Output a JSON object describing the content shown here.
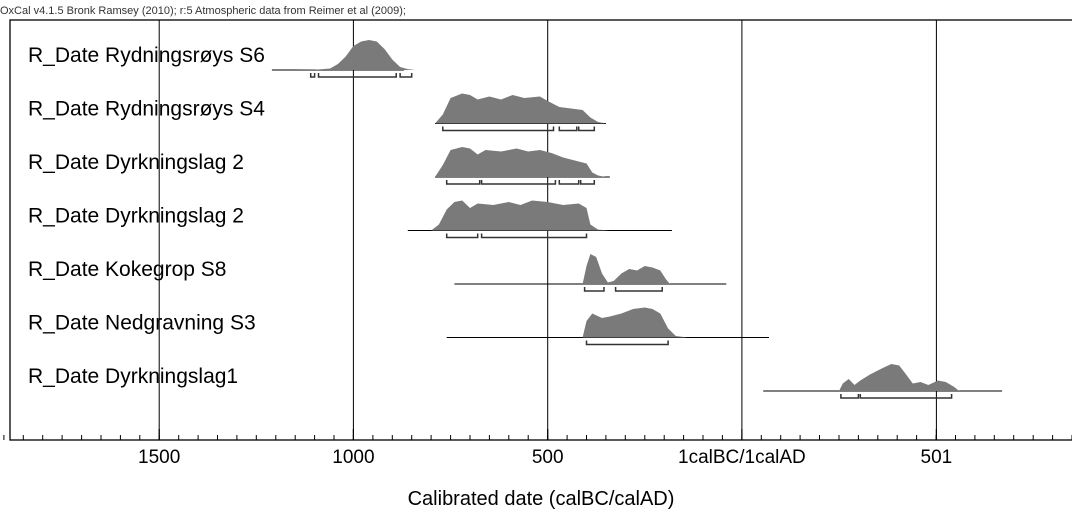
{
  "chart_data": {
    "type": "area",
    "header": "OxCal v4.1.5 Bronk Ramsey (2010); r:5 Atmospheric data from Reimer et al (2009);",
    "xlabel": "Calibrated date (calBC/calAD)",
    "x_axis": {
      "direction": "left-to-right older-to-younger",
      "range": [
        -1910,
        850
      ],
      "major_ticks": [
        {
          "value": -1500,
          "label": "1500"
        },
        {
          "value": -1000,
          "label": "1000"
        },
        {
          "value": -500,
          "label": "500"
        },
        {
          "value": 0,
          "label": "1calBC/1calAD"
        },
        {
          "value": 501,
          "label": "501"
        }
      ],
      "minor_tick_step": 50
    },
    "grid": true,
    "colors": {
      "distribution": "#7a7a7a",
      "line": "#000000",
      "range": "#333333",
      "frame": "#000000"
    },
    "series": [
      {
        "name": "R_Date Rydningsrøys S6",
        "baseline_span": [
          -1210,
          -870
        ],
        "distribution": [
          [
            -1160,
            0
          ],
          [
            -1100,
            0.01
          ],
          [
            -1060,
            0.05
          ],
          [
            -1040,
            0.2
          ],
          [
            -1020,
            0.45
          ],
          [
            -1000,
            0.8
          ],
          [
            -980,
            0.95
          ],
          [
            -960,
            1.0
          ],
          [
            -940,
            0.95
          ],
          [
            -920,
            0.7
          ],
          [
            -900,
            0.35
          ],
          [
            -880,
            0.1
          ],
          [
            -860,
            0.03
          ],
          [
            -840,
            0
          ]
        ],
        "ranges": [
          [
            -1110,
            -1100
          ],
          [
            -1090,
            -890
          ],
          [
            -880,
            -850
          ]
        ]
      },
      {
        "name": "R_Date Rydningsrøys S4",
        "baseline_span": [
          -790,
          -350
        ],
        "distribution": [
          [
            -790,
            0
          ],
          [
            -770,
            0.3
          ],
          [
            -750,
            0.85
          ],
          [
            -720,
            1.0
          ],
          [
            -700,
            0.95
          ],
          [
            -680,
            0.8
          ],
          [
            -650,
            0.9
          ],
          [
            -620,
            0.8
          ],
          [
            -590,
            0.95
          ],
          [
            -560,
            0.85
          ],
          [
            -520,
            0.9
          ],
          [
            -500,
            0.75
          ],
          [
            -470,
            0.55
          ],
          [
            -440,
            0.5
          ],
          [
            -410,
            0.45
          ],
          [
            -390,
            0.2
          ],
          [
            -370,
            0.05
          ],
          [
            -350,
            0
          ]
        ],
        "ranges": [
          [
            -770,
            -485
          ],
          [
            -470,
            -425
          ],
          [
            -420,
            -380
          ]
        ]
      },
      {
        "name": "R_Date Dyrkningslag 2",
        "baseline_span": [
          -790,
          -340
        ],
        "distribution": [
          [
            -790,
            0
          ],
          [
            -770,
            0.4
          ],
          [
            -750,
            0.9
          ],
          [
            -720,
            1.0
          ],
          [
            -700,
            0.95
          ],
          [
            -680,
            0.75
          ],
          [
            -660,
            0.9
          ],
          [
            -620,
            0.85
          ],
          [
            -580,
            0.95
          ],
          [
            -550,
            0.85
          ],
          [
            -520,
            0.9
          ],
          [
            -490,
            0.8
          ],
          [
            -460,
            0.65
          ],
          [
            -430,
            0.55
          ],
          [
            -400,
            0.45
          ],
          [
            -385,
            0.15
          ],
          [
            -370,
            0.05
          ],
          [
            -350,
            0
          ]
        ],
        "ranges": [
          [
            -760,
            -675
          ],
          [
            -670,
            -480
          ],
          [
            -470,
            -420
          ],
          [
            -415,
            -380
          ]
        ]
      },
      {
        "name": "R_Date Dyrkningslag 2",
        "baseline_span": [
          -860,
          -180
        ],
        "distribution": [
          [
            -800,
            0
          ],
          [
            -780,
            0.2
          ],
          [
            -760,
            0.7
          ],
          [
            -740,
            0.95
          ],
          [
            -720,
            1.0
          ],
          [
            -700,
            0.75
          ],
          [
            -680,
            0.9
          ],
          [
            -640,
            0.85
          ],
          [
            -600,
            0.95
          ],
          [
            -570,
            0.85
          ],
          [
            -540,
            1.0
          ],
          [
            -500,
            0.95
          ],
          [
            -460,
            0.85
          ],
          [
            -420,
            0.9
          ],
          [
            -400,
            0.75
          ],
          [
            -390,
            0.2
          ],
          [
            -370,
            0.03
          ],
          [
            -340,
            0
          ]
        ],
        "ranges": [
          [
            -760,
            -680
          ],
          [
            -670,
            -400
          ]
        ]
      },
      {
        "name": "R_Date Kokegrop S8",
        "baseline_span": [
          -740,
          -40
        ],
        "distribution": [
          [
            -410,
            0
          ],
          [
            -400,
            0.6
          ],
          [
            -390,
            1.0
          ],
          [
            -375,
            0.9
          ],
          [
            -360,
            0.35
          ],
          [
            -345,
            0.05
          ],
          [
            -330,
            0.1
          ],
          [
            -310,
            0.35
          ],
          [
            -290,
            0.5
          ],
          [
            -270,
            0.45
          ],
          [
            -250,
            0.6
          ],
          [
            -230,
            0.55
          ],
          [
            -210,
            0.45
          ],
          [
            -195,
            0.15
          ],
          [
            -185,
            0
          ]
        ],
        "ranges": [
          [
            -405,
            -355
          ],
          [
            -325,
            -205
          ]
        ]
      },
      {
        "name": "R_Date Nedgravning S3",
        "baseline_span": [
          -760,
          70
        ],
        "distribution": [
          [
            -410,
            0
          ],
          [
            -400,
            0.55
          ],
          [
            -385,
            0.8
          ],
          [
            -360,
            0.65
          ],
          [
            -340,
            0.7
          ],
          [
            -310,
            0.8
          ],
          [
            -280,
            0.95
          ],
          [
            -250,
            1.0
          ],
          [
            -230,
            0.95
          ],
          [
            -210,
            0.8
          ],
          [
            -190,
            0.3
          ],
          [
            -170,
            0.05
          ],
          [
            -140,
            0
          ]
        ],
        "ranges": [
          [
            -400,
            -190
          ]
        ]
      },
      {
        "name": "R_Date Dyrkningslag1",
        "baseline_span": [
          55,
          670
        ],
        "distribution": [
          [
            250,
            0
          ],
          [
            260,
            0.25
          ],
          [
            275,
            0.4
          ],
          [
            290,
            0.2
          ],
          [
            305,
            0.35
          ],
          [
            330,
            0.55
          ],
          [
            360,
            0.75
          ],
          [
            385,
            0.9
          ],
          [
            405,
            0.85
          ],
          [
            420,
            0.6
          ],
          [
            440,
            0.25
          ],
          [
            460,
            0.3
          ],
          [
            480,
            0.2
          ],
          [
            505,
            0.35
          ],
          [
            525,
            0.3
          ],
          [
            545,
            0.15
          ],
          [
            560,
            0
          ]
        ],
        "ranges": [
          [
            255,
            300
          ],
          [
            305,
            540
          ]
        ]
      }
    ]
  }
}
